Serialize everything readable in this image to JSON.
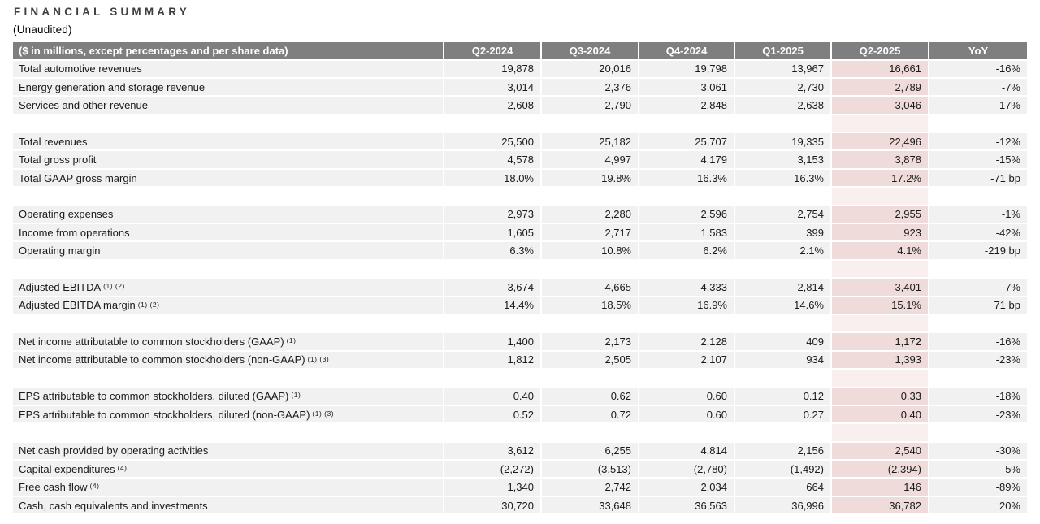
{
  "title": "FINANCIAL SUMMARY",
  "subtitle": "(Unaudited)",
  "colors": {
    "header_bg": "#7f7f7f",
    "header_text": "#ffffff",
    "row_bg": "#f1f1f1",
    "highlight_column_bg": "#efdbd9",
    "highlight_column_spacer_bg": "#f9efee",
    "title_text": "#3f3f3f"
  },
  "chart_data": {
    "type": "table",
    "title": "FINANCIAL SUMMARY (Unaudited)",
    "highlighted_column": "Q2-2025",
    "header": {
      "label": "($ in millions, except percentages and per share data)",
      "columns": [
        "Q2-2024",
        "Q3-2024",
        "Q4-2024",
        "Q1-2025",
        "Q2-2025",
        "YoY"
      ]
    },
    "sections": [
      {
        "rows": [
          {
            "label": "Total automotive revenues",
            "sup": "",
            "values": [
              "19,878",
              "20,016",
              "19,798",
              "13,967",
              "16,661"
            ],
            "yoy": "-16%"
          },
          {
            "label": "Energy generation and storage revenue",
            "sup": "",
            "values": [
              "3,014",
              "2,376",
              "3,061",
              "2,730",
              "2,789"
            ],
            "yoy": "-7%"
          },
          {
            "label": "Services and other revenue",
            "sup": "",
            "values": [
              "2,608",
              "2,790",
              "2,848",
              "2,638",
              "3,046"
            ],
            "yoy": "17%"
          }
        ]
      },
      {
        "rows": [
          {
            "label": "Total revenues",
            "sup": "",
            "values": [
              "25,500",
              "25,182",
              "25,707",
              "19,335",
              "22,496"
            ],
            "yoy": "-12%"
          },
          {
            "label": "Total gross profit",
            "sup": "",
            "values": [
              "4,578",
              "4,997",
              "4,179",
              "3,153",
              "3,878"
            ],
            "yoy": "-15%"
          },
          {
            "label": "Total GAAP gross margin",
            "sup": "",
            "values": [
              "18.0%",
              "19.8%",
              "16.3%",
              "16.3%",
              "17.2%"
            ],
            "yoy": "-71 bp"
          }
        ]
      },
      {
        "rows": [
          {
            "label": "Operating expenses",
            "sup": "",
            "values": [
              "2,973",
              "2,280",
              "2,596",
              "2,754",
              "2,955"
            ],
            "yoy": "-1%"
          },
          {
            "label": "Income from operations",
            "sup": "",
            "values": [
              "1,605",
              "2,717",
              "1,583",
              "399",
              "923"
            ],
            "yoy": "-42%"
          },
          {
            "label": "Operating margin",
            "sup": "",
            "values": [
              "6.3%",
              "10.8%",
              "6.2%",
              "2.1%",
              "4.1%"
            ],
            "yoy": "-219 bp"
          }
        ]
      },
      {
        "rows": [
          {
            "label": "Adjusted EBITDA",
            "sup": "(1) (2)",
            "values": [
              "3,674",
              "4,665",
              "4,333",
              "2,814",
              "3,401"
            ],
            "yoy": "-7%"
          },
          {
            "label": "Adjusted EBITDA margin",
            "sup": "(1) (2)",
            "values": [
              "14.4%",
              "18.5%",
              "16.9%",
              "14.6%",
              "15.1%"
            ],
            "yoy": "71 bp"
          }
        ]
      },
      {
        "rows": [
          {
            "label": "Net income attributable to common stockholders (GAAP)",
            "sup": "(1)",
            "values": [
              "1,400",
              "2,173",
              "2,128",
              "409",
              "1,172"
            ],
            "yoy": "-16%"
          },
          {
            "label": "Net income attributable to common stockholders (non-GAAP)",
            "sup": "(1) (3)",
            "values": [
              "1,812",
              "2,505",
              "2,107",
              "934",
              "1,393"
            ],
            "yoy": "-23%"
          }
        ]
      },
      {
        "rows": [
          {
            "label": "EPS attributable to common stockholders, diluted (GAAP)",
            "sup": "(1)",
            "values": [
              "0.40",
              "0.62",
              "0.60",
              "0.12",
              "0.33"
            ],
            "yoy": "-18%"
          },
          {
            "label": "EPS attributable to common stockholders, diluted (non-GAAP)",
            "sup": "(1) (3)",
            "values": [
              "0.52",
              "0.72",
              "0.60",
              "0.27",
              "0.40"
            ],
            "yoy": "-23%"
          }
        ]
      },
      {
        "rows": [
          {
            "label": "Net cash provided by operating activities",
            "sup": "",
            "values": [
              "3,612",
              "6,255",
              "4,814",
              "2,156",
              "2,540"
            ],
            "yoy": "-30%"
          },
          {
            "label": "Capital expenditures",
            "sup": "(4)",
            "values": [
              "(2,272)",
              "(3,513)",
              "(2,780)",
              "(1,492)",
              "(2,394)"
            ],
            "yoy": "5%"
          },
          {
            "label": "Free cash flow",
            "sup": "(4)",
            "values": [
              "1,340",
              "2,742",
              "2,034",
              "664",
              "146"
            ],
            "yoy": "-89%"
          },
          {
            "label": "Cash, cash equivalents and investments",
            "sup": "",
            "values": [
              "30,720",
              "33,648",
              "36,563",
              "36,996",
              "36,782"
            ],
            "yoy": "20%"
          }
        ]
      }
    ]
  }
}
